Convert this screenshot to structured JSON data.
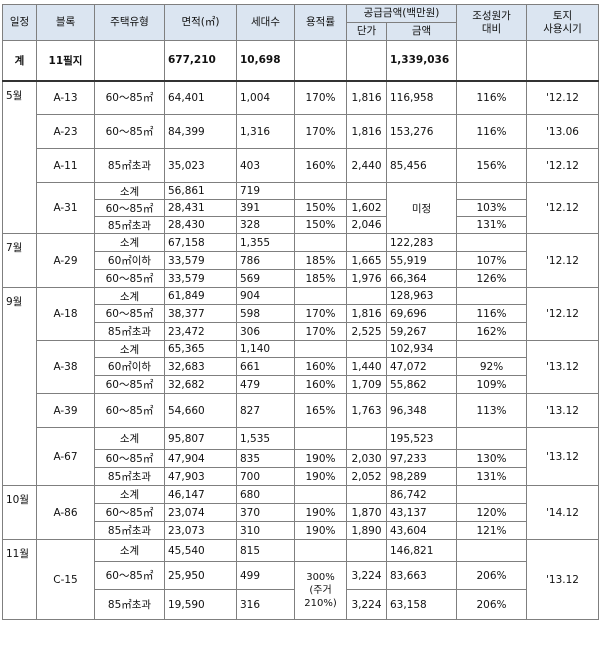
{
  "headers": {
    "schedule": "일정",
    "block": "블록",
    "housing_type": "주택유형",
    "area": "면적(㎡)",
    "households": "세대수",
    "far": "용적률",
    "supply_amount": "공급금액(백만원)",
    "unit_price": "단가",
    "amount": "금액",
    "cost_ratio_line1": "조성원가",
    "cost_ratio_line2": "대비",
    "land_use_line1": "토지",
    "land_use_line2": "사용시기"
  },
  "total": {
    "label": "계",
    "block": "11필지",
    "area": "677,210",
    "households": "10,698",
    "amount": "1,339,036"
  },
  "rows": [
    {
      "schedule": "5월",
      "block": "A-13",
      "type": "60～85㎡",
      "area": "64,401",
      "hh": "1,004",
      "far": "170%",
      "price": "1,816",
      "amount": "116,958",
      "ratio": "116%",
      "land": "'12.12"
    },
    {
      "schedule": "",
      "block": "A-23",
      "type": "60～85㎡",
      "area": "84,399",
      "hh": "1,316",
      "far": "170%",
      "price": "1,816",
      "amount": "153,276",
      "ratio": "116%",
      "land": "'13.06"
    },
    {
      "schedule": "",
      "block": "A-11",
      "type": "85㎡초과",
      "area": "35,023",
      "hh": "403",
      "far": "160%",
      "price": "2,440",
      "amount": "85,456",
      "ratio": "156%",
      "land": "'12.12"
    },
    {
      "schedule": "",
      "block": "A-31",
      "type": "소계",
      "area": "56,861",
      "hh": "719",
      "far": "",
      "price": "",
      "amount": "미정",
      "ratio": "",
      "land": "'12.12"
    },
    {
      "schedule": "",
      "block": "",
      "type": "60～85㎡",
      "area": "28,431",
      "hh": "391",
      "far": "150%",
      "price": "1,602",
      "amount": "",
      "ratio": "103%",
      "land": ""
    },
    {
      "schedule": "",
      "block": "",
      "type": "85㎡초과",
      "area": "28,430",
      "hh": "328",
      "far": "150%",
      "price": "2,046",
      "amount": "",
      "ratio": "131%",
      "land": ""
    },
    {
      "schedule": "7월",
      "block": "A-29",
      "type": "소계",
      "area": "67,158",
      "hh": "1,355",
      "far": "",
      "price": "",
      "amount": "122,283",
      "ratio": "",
      "land": "'12.12"
    },
    {
      "schedule": "",
      "block": "",
      "type": "60㎡이하",
      "area": "33,579",
      "hh": "786",
      "far": "185%",
      "price": "1,665",
      "amount": "55,919",
      "ratio": "107%",
      "land": ""
    },
    {
      "schedule": "",
      "block": "",
      "type": "60～85㎡",
      "area": "33,579",
      "hh": "569",
      "far": "185%",
      "price": "1,976",
      "amount": "66,364",
      "ratio": "126%",
      "land": ""
    },
    {
      "schedule": "9월",
      "block": "A-18",
      "type": "소계",
      "area": "61,849",
      "hh": "904",
      "far": "",
      "price": "",
      "amount": "128,963",
      "ratio": "",
      "land": "'12.12"
    },
    {
      "schedule": "",
      "block": "",
      "type": "60～85㎡",
      "area": "38,377",
      "hh": "598",
      "far": "170%",
      "price": "1,816",
      "amount": "69,696",
      "ratio": "116%",
      "land": ""
    },
    {
      "schedule": "",
      "block": "",
      "type": "85㎡초과",
      "area": "23,472",
      "hh": "306",
      "far": "170%",
      "price": "2,525",
      "amount": "59,267",
      "ratio": "162%",
      "land": ""
    },
    {
      "schedule": "",
      "block": "A-38",
      "type": "소계",
      "area": "65,365",
      "hh": "1,140",
      "far": "",
      "price": "",
      "amount": "102,934",
      "ratio": "",
      "land": "'13.12"
    },
    {
      "schedule": "",
      "block": "",
      "type": "60㎡이하",
      "area": "32,683",
      "hh": "661",
      "far": "160%",
      "price": "1,440",
      "amount": "47,072",
      "ratio": "92%",
      "land": ""
    },
    {
      "schedule": "",
      "block": "",
      "type": "60～85㎡",
      "area": "32,682",
      "hh": "479",
      "far": "160%",
      "price": "1,709",
      "amount": "55,862",
      "ratio": "109%",
      "land": ""
    },
    {
      "schedule": "",
      "block": "A-39",
      "type": "60～85㎡",
      "area": "54,660",
      "hh": "827",
      "far": "165%",
      "price": "1,763",
      "amount": "96,348",
      "ratio": "113%",
      "land": "'13.12"
    },
    {
      "schedule": "",
      "block": "A-67",
      "type": "소계",
      "area": "95,807",
      "hh": "1,535",
      "far": "",
      "price": "",
      "amount": "195,523",
      "ratio": "",
      "land": "'13.12"
    },
    {
      "schedule": "",
      "block": "",
      "type": "60～85㎡",
      "area": "47,904",
      "hh": "835",
      "far": "190%",
      "price": "2,030",
      "amount": "97,233",
      "ratio": "130%",
      "land": ""
    },
    {
      "schedule": "",
      "block": "",
      "type": "85㎡초과",
      "area": "47,903",
      "hh": "700",
      "far": "190%",
      "price": "2,052",
      "amount": "98,289",
      "ratio": "131%",
      "land": ""
    },
    {
      "schedule": "10월",
      "block": "A-86",
      "type": "소계",
      "area": "46,147",
      "hh": "680",
      "far": "",
      "price": "",
      "amount": "86,742",
      "ratio": "",
      "land": "'14.12"
    },
    {
      "schedule": "",
      "block": "",
      "type": "60～85㎡",
      "area": "23,074",
      "hh": "370",
      "far": "190%",
      "price": "1,870",
      "amount": "43,137",
      "ratio": "120%",
      "land": ""
    },
    {
      "schedule": "",
      "block": "",
      "type": "85㎡초과",
      "area": "23,073",
      "hh": "310",
      "far": "190%",
      "price": "1,890",
      "amount": "43,604",
      "ratio": "121%",
      "land": ""
    },
    {
      "schedule": "11월",
      "block": "C-15",
      "type": "소계",
      "area": "45,540",
      "hh": "815",
      "far": "",
      "price": "",
      "amount": "146,821",
      "ratio": "",
      "land": "'13.12"
    },
    {
      "schedule": "",
      "block": "",
      "type": "60～85㎡",
      "area": "25,950",
      "hh": "499",
      "far": "300%",
      "price": "3,224",
      "amount": "83,663",
      "ratio": "206%",
      "land": ""
    },
    {
      "schedule": "",
      "block": "",
      "type": "85㎡초과",
      "area": "19,590",
      "hh": "316",
      "far": "(주거210%)",
      "price": "3,224",
      "amount": "63,158",
      "ratio": "206%",
      "land": ""
    }
  ]
}
